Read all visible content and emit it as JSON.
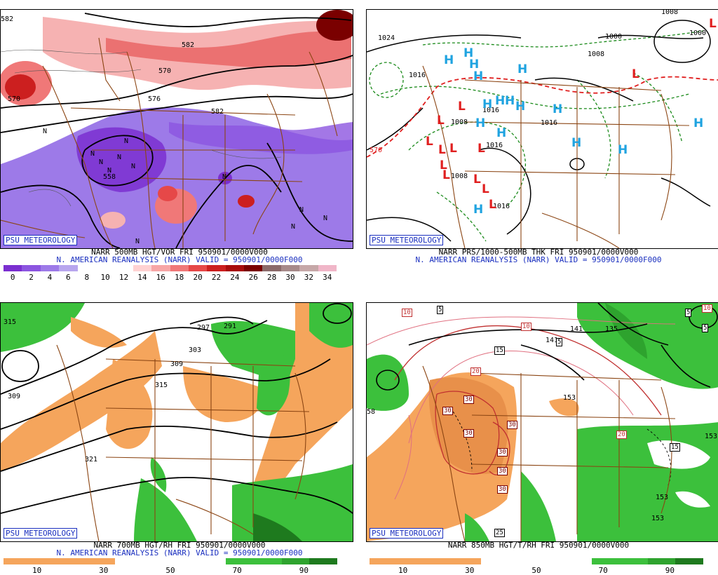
{
  "panels": [
    {
      "logo": "PSU METEOROLOGY",
      "title_line1": "NARR 500MB HGT/VOR FRI 950901/0000V000",
      "title_line2": "N. AMERICAN REANALYSIS (NARR) VALID = 950901/0000F000",
      "colorbar_ticks": [
        "0",
        "2",
        "4",
        "6",
        "8",
        "10",
        "12",
        "14",
        "16",
        "18",
        "20",
        "22",
        "24",
        "26",
        "28",
        "30",
        "32",
        "34"
      ],
      "colorbar_colors": [
        "#7b2fd0",
        "#8c55e0",
        "#9d7ae8",
        "#b8a6ee",
        "#ffffff",
        "#ffffff",
        "#ffffff",
        "#ffd2d2",
        "#f7a6a6",
        "#f07878",
        "#e64848",
        "#cc1f1f",
        "#a80c0c",
        "#7a0000",
        "#8b6a6a",
        "#a78a8a",
        "#c6a8a8",
        "#f0b6c8"
      ],
      "contour_labels": [
        "558",
        "570",
        "570",
        "576",
        "582",
        "582",
        "582"
      ],
      "symbols": [
        "N",
        "N",
        "N",
        "N",
        "N",
        "N",
        "N",
        "N",
        "N",
        "N",
        "N",
        "N"
      ]
    },
    {
      "logo": "PSU METEOROLOGY",
      "title_line1": "NARR PRS/1000-500MB THK FRI 950901/0000V000",
      "title_line2": "N. AMERICAN REANALYSIS (NARR) VALID = 950901/0000F000",
      "contour_labels": [
        "1024",
        "1016",
        "1016",
        "1016",
        "1016",
        "1008",
        "1008",
        "1008",
        "1008",
        "1000",
        "1000",
        "570",
        "1016"
      ],
      "high_symbol": "H",
      "low_symbol": "L",
      "high_color": "#1fa3e0",
      "low_color": "#e01f1f"
    },
    {
      "logo": "PSU METEOROLOGY",
      "title_line1": "NARR 700MB HGT/RH FRI 950901/0000V000",
      "title_line2": "N. AMERICAN REANALYSIS (NARR) VALID = 950901/0000F000",
      "colorbar_ticks": [
        "10",
        "30",
        "50",
        "70",
        "90"
      ],
      "colorbar_colors": [
        "#f5a55c",
        "#f5a55c",
        "#f5a55c",
        "#f5a55c",
        "#ffffff",
        "#ffffff",
        "#ffffff",
        "#ffffff",
        "#3cc03c",
        "#3cc03c",
        "#2ea32e",
        "#1e7a1e"
      ],
      "contour_labels": [
        "315",
        "297",
        "291",
        "303",
        "309",
        "315",
        "321",
        "309"
      ]
    },
    {
      "logo": "PSU METEOROLOGY",
      "title_line1": "NARR 850MB HGT/T/RH FRI 950901/0000V000",
      "title_line2": "",
      "colorbar_ticks": [
        "10",
        "30",
        "50",
        "70",
        "90"
      ],
      "colorbar_colors": [
        "#f5a55c",
        "#f5a55c",
        "#f5a55c",
        "#f5a55c",
        "#ffffff",
        "#ffffff",
        "#ffffff",
        "#ffffff",
        "#3cc03c",
        "#3cc03c",
        "#2ea32e",
        "#1e7a1e"
      ],
      "contour_labels": [
        "141",
        "153",
        "153",
        "153",
        "58",
        "135",
        "141",
        "153"
      ],
      "temp_boxes": [
        "10",
        "5",
        "10",
        "5",
        "5",
        "15",
        "20",
        "30",
        "30",
        "30",
        "30",
        "30",
        "30",
        "30",
        "20",
        "15",
        "25",
        "10",
        "5"
      ]
    }
  ]
}
